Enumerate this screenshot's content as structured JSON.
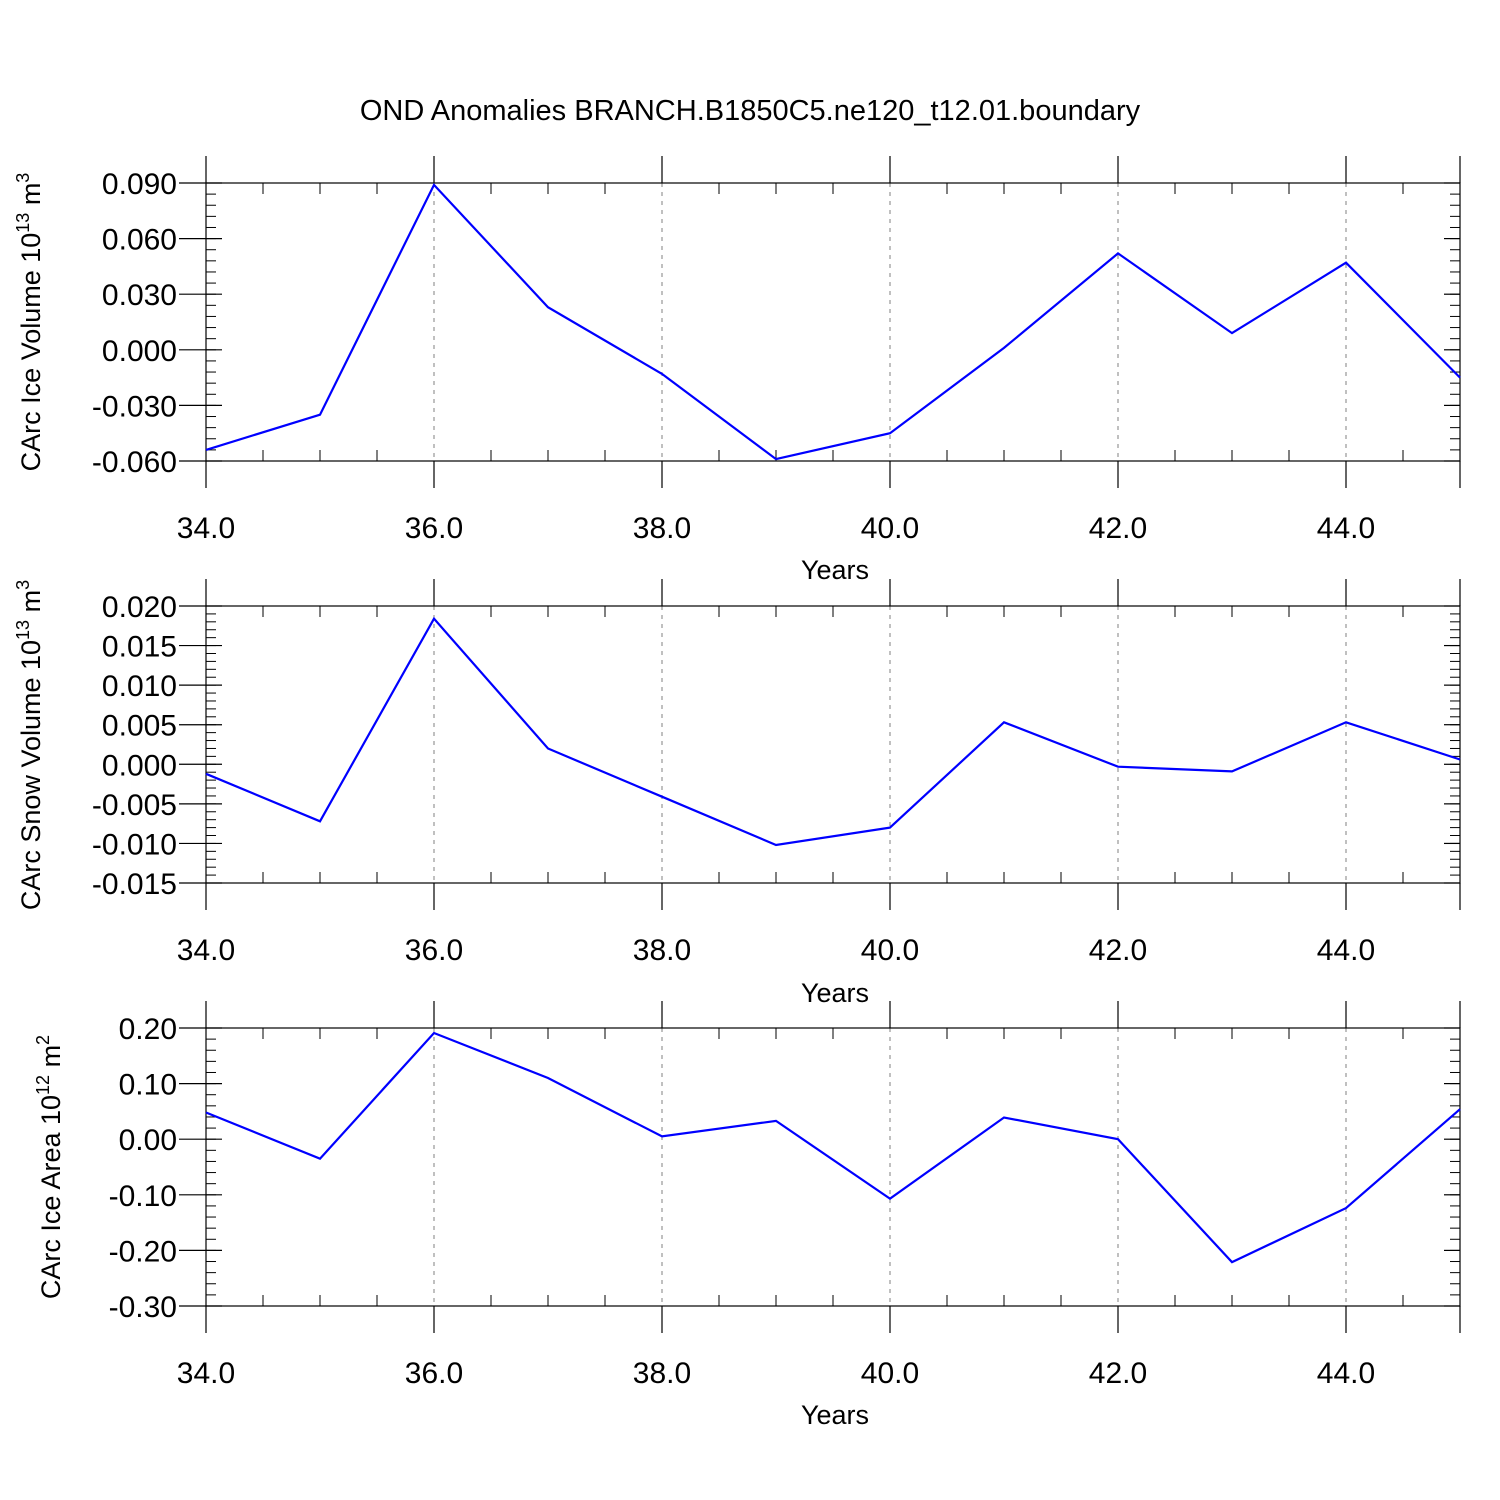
{
  "title": "OND Anomalies BRANCH.B1850C5.ne120_t12.01.boundary",
  "colors": {
    "series": "#0000ff",
    "axes": "#000000",
    "grid": "#808080"
  },
  "chart_data": [
    {
      "type": "line",
      "ylabel": {
        "text": "CArc Ice Volume 10",
        "sup": "13",
        "unit": " m",
        "unit_sup": "3"
      },
      "xlabel": "Years",
      "xlim": [
        34,
        45
      ],
      "ylim": [
        -0.06,
        0.09
      ],
      "x_ticks": [
        34,
        36,
        38,
        40,
        42,
        44
      ],
      "x_tick_labels": [
        "34.0",
        "36.0",
        "38.0",
        "40.0",
        "42.0",
        "44.0"
      ],
      "y_ticks": [
        -0.06,
        -0.03,
        0,
        0.03,
        0.06,
        0.09
      ],
      "y_tick_labels": [
        "-0.060",
        "-0.030",
        "0.000",
        "0.030",
        "0.060",
        "0.090"
      ],
      "y_minor_step": 0.006,
      "x_minor_step": 0.5,
      "grid": "dashed vertical at major x ticks",
      "x": [
        34,
        35,
        36,
        37,
        38,
        39,
        40,
        41,
        42,
        43,
        44,
        45
      ],
      "values": [
        -0.054,
        -0.035,
        0.089,
        0.023,
        -0.013,
        -0.059,
        -0.045,
        0.001,
        0.052,
        0.009,
        0.047,
        -0.015
      ]
    },
    {
      "type": "line",
      "ylabel": {
        "text": "CArc Snow Volume 10",
        "sup": "13",
        "unit": " m",
        "unit_sup": "3"
      },
      "xlabel": "Years",
      "xlim": [
        34,
        45
      ],
      "ylim": [
        -0.015,
        0.02
      ],
      "x_ticks": [
        34,
        36,
        38,
        40,
        42,
        44
      ],
      "x_tick_labels": [
        "34.0",
        "36.0",
        "38.0",
        "40.0",
        "42.0",
        "44.0"
      ],
      "y_ticks": [
        -0.015,
        -0.01,
        -0.005,
        0,
        0.005,
        0.01,
        0.015,
        0.02
      ],
      "y_tick_labels": [
        "-0.015",
        "-0.010",
        "-0.005",
        "0.000",
        "0.005",
        "0.010",
        "0.015",
        "0.020"
      ],
      "y_minor_step": 0.001,
      "x_minor_step": 0.5,
      "grid": "dashed vertical at major x ticks",
      "x": [
        34,
        35,
        36,
        37,
        38,
        39,
        40,
        41,
        42,
        43,
        44,
        45
      ],
      "values": [
        -0.0012,
        -0.0072,
        0.0184,
        0.002,
        -0.0041,
        -0.0102,
        -0.008,
        0.0053,
        -0.0003,
        -0.0009,
        0.0053,
        0.0006
      ]
    },
    {
      "type": "line",
      "ylabel": {
        "text": "CArc Ice Area 10",
        "sup": "12",
        "unit": " m",
        "unit_sup": "2"
      },
      "xlabel": "Years",
      "xlim": [
        34,
        45
      ],
      "ylim": [
        -0.3,
        0.2
      ],
      "x_ticks": [
        34,
        36,
        38,
        40,
        42,
        44
      ],
      "x_tick_labels": [
        "34.0",
        "36.0",
        "38.0",
        "40.0",
        "42.0",
        "44.0"
      ],
      "y_ticks": [
        -0.3,
        -0.2,
        -0.1,
        0,
        0.1,
        0.2
      ],
      "y_tick_labels": [
        "-0.30",
        "-0.20",
        "-0.10",
        "0.00",
        "0.10",
        "0.20"
      ],
      "y_minor_step": 0.02,
      "x_minor_step": 0.5,
      "grid": "dashed vertical at major x ticks",
      "x": [
        34,
        35,
        36,
        37,
        38,
        39,
        40,
        41,
        42,
        43,
        44,
        45
      ],
      "values": [
        0.048,
        -0.035,
        0.191,
        0.11,
        0.005,
        0.033,
        -0.107,
        0.039,
        0.0,
        -0.221,
        -0.124,
        0.054
      ]
    }
  ]
}
